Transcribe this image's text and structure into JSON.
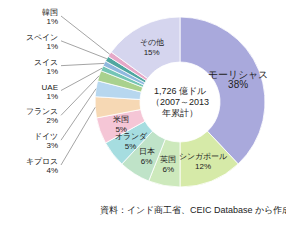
{
  "chart_data": {
    "type": "pie",
    "categories": [
      "モーリシャス",
      "シンガポール",
      "英国",
      "日本",
      "オランダ",
      "米国",
      "キプロス",
      "ドイツ",
      "フランス",
      "UAE",
      "スイス",
      "スペイン",
      "韓国",
      "その他"
    ],
    "values": [
      38,
      12,
      6,
      6,
      5,
      5,
      4,
      3,
      2,
      1,
      1,
      1,
      1,
      15
    ],
    "value_labels": [
      "38%",
      "12%",
      "6%",
      "6%",
      "5%",
      "5%",
      "4%",
      "3%",
      "2%",
      "1%",
      "1%",
      "1%",
      "1%",
      "15%"
    ],
    "colors": [
      "#a9a9dc",
      "#d6eaa8",
      "#cde9bc",
      "#bfe3c8",
      "#a6dde0",
      "#f5c6d6",
      "#f6d8b4",
      "#b7d7ef",
      "#a9d18e",
      "#74c5b5",
      "#8fb8de",
      "#4fa7a0",
      "#e6a8c8",
      "#d5d5ee"
    ],
    "data_labels": true,
    "center_label": [
      "1,726 億ドル",
      "（2007～2013",
      "年累計）"
    ],
    "caption": "資料：インド商工省、CEIC Database から作成。"
  }
}
